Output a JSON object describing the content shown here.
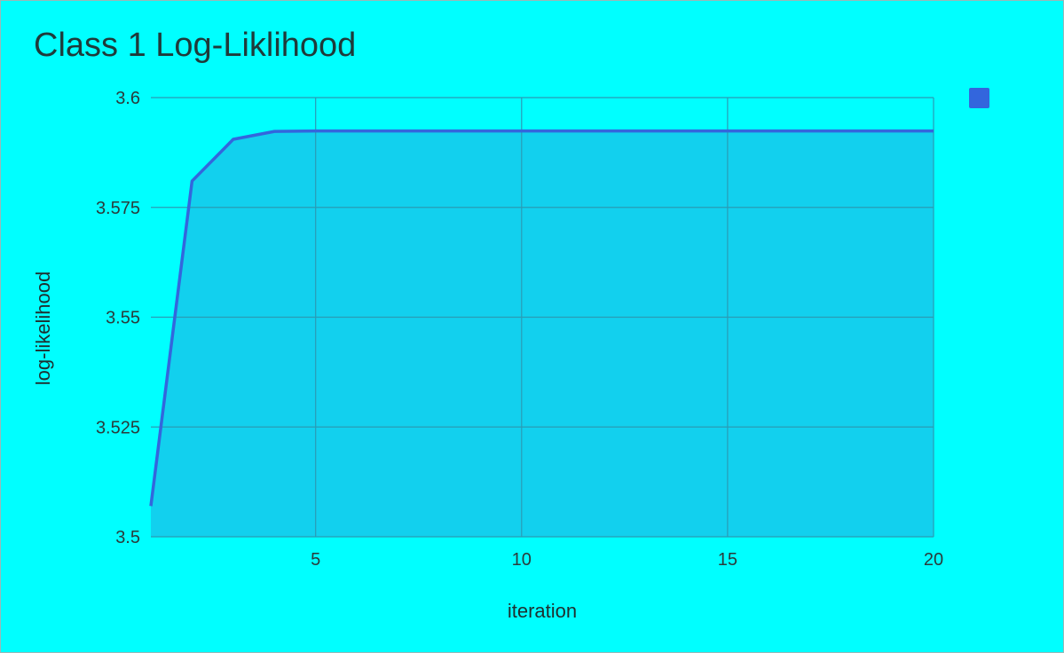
{
  "chart_data": {
    "type": "area",
    "title": "Class 1 Log-Liklihood",
    "xlabel": "iteration",
    "ylabel": "log-likelihood",
    "xlim": [
      1,
      20
    ],
    "ylim": [
      3.5,
      3.6
    ],
    "x_ticks": [
      "5",
      "10",
      "15",
      "20"
    ],
    "y_ticks": [
      "3.6",
      "3.575",
      "3.55",
      "3.525",
      "3.5"
    ],
    "grid": true,
    "legend": "top-right",
    "series": [
      {
        "x": [
          1,
          2,
          3,
          4,
          5,
          6,
          7,
          8,
          9,
          10,
          11,
          12,
          13,
          14,
          15,
          16,
          17,
          18,
          19,
          20
        ],
        "values": [
          3.507,
          3.581,
          3.5905,
          3.5923,
          3.5924,
          3.5924,
          3.5924,
          3.5924,
          3.5924,
          3.5924,
          3.5924,
          3.5924,
          3.5924,
          3.5924,
          3.5924,
          3.5924,
          3.5924,
          3.5924,
          3.5924,
          3.5924
        ],
        "color": "#3366dd",
        "fill": "#12d0ee"
      }
    ]
  }
}
